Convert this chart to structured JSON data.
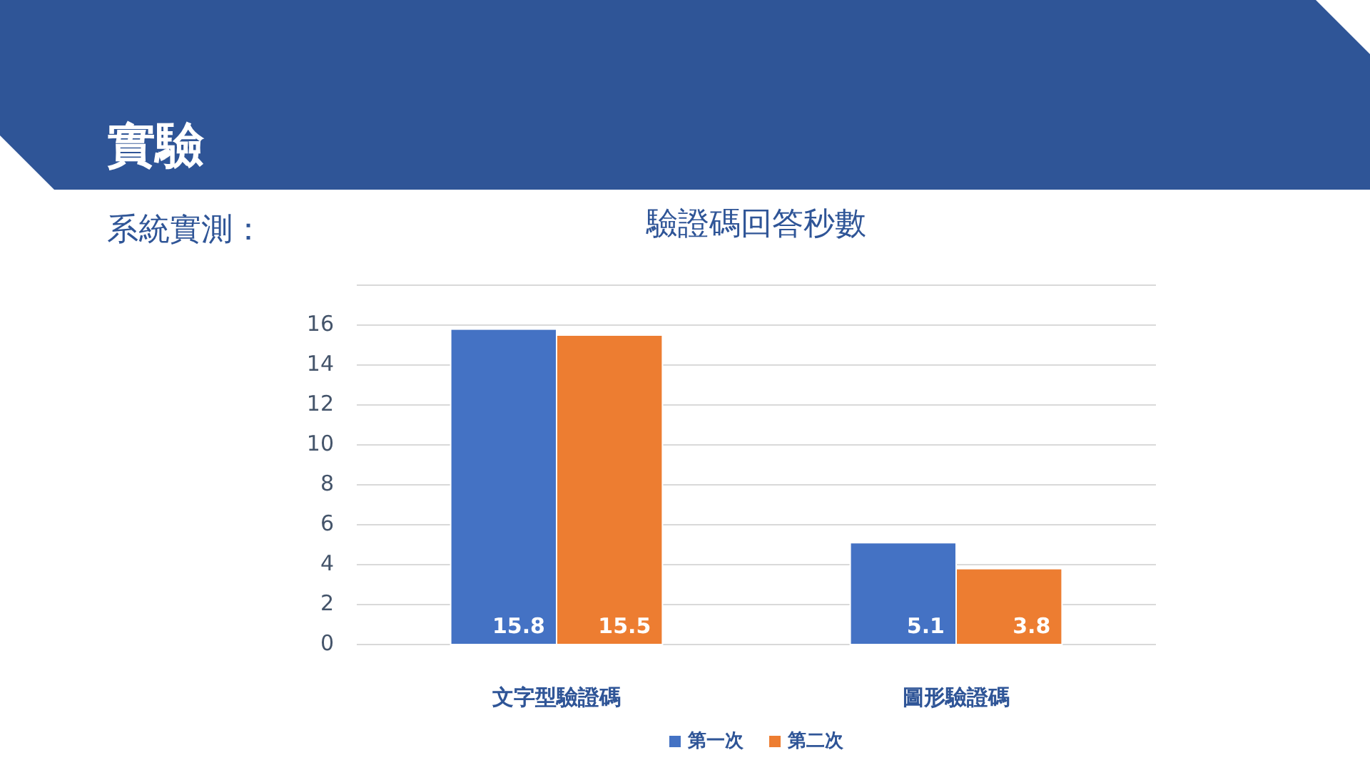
{
  "chart_data": {
    "type": "bar",
    "title": "驗證碼回答秒數",
    "annotations": [
      "實驗",
      "系統實測："
    ],
    "categories": [
      "文字型驗證碼",
      "圖形驗證碼"
    ],
    "series": [
      {
        "name": "第一次",
        "color": "#4472c4",
        "values": [
          15.8,
          5.1
        ]
      },
      {
        "name": "第二次",
        "color": "#ed7d31",
        "values": [
          15.5,
          3.8
        ]
      }
    ],
    "ylim": [
      0,
      18
    ],
    "yticks": [
      0,
      2,
      4,
      6,
      8,
      10,
      12,
      14,
      16,
      {
        "value": 18,
        "label": null
      }
    ],
    "grid": "y",
    "legend": "bottom",
    "data_labels": true
  }
}
